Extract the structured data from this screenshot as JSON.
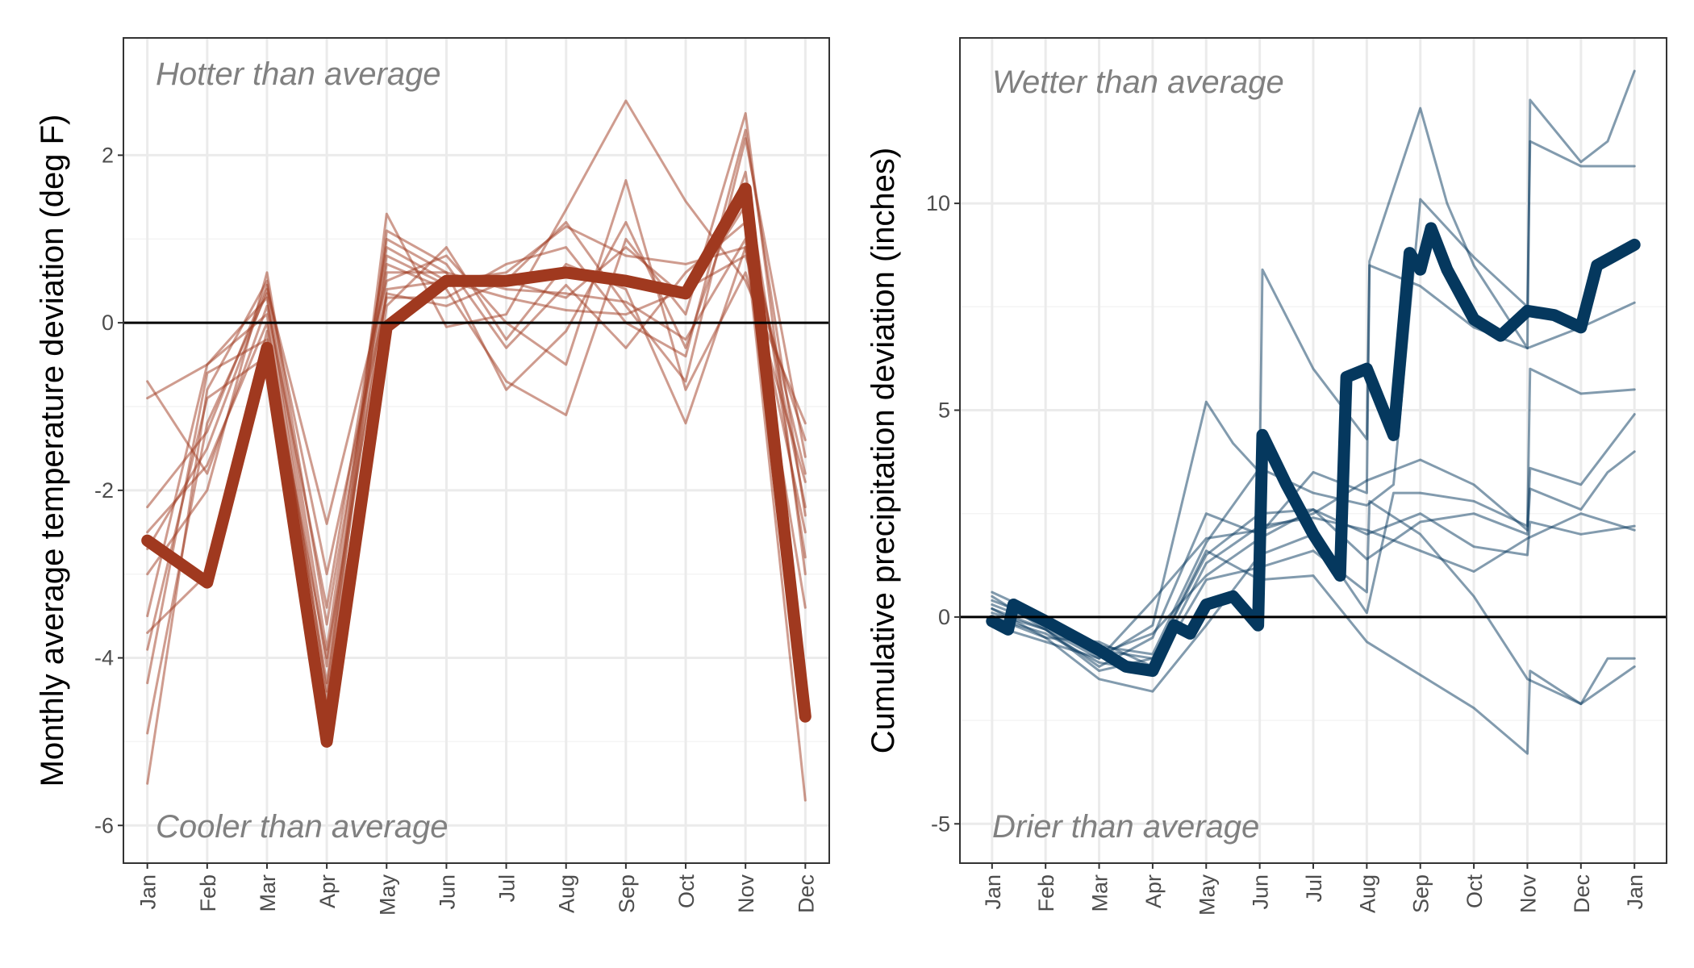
{
  "chart_data": [
    {
      "type": "line",
      "ylabel": "Monthly average temperature deviation (deg F)",
      "xlabel": "",
      "categories": [
        "Jan",
        "Feb",
        "Mar",
        "Apr",
        "May",
        "Jun",
        "Jul",
        "Aug",
        "Sep",
        "Oct",
        "Nov",
        "Dec"
      ],
      "ylim": [
        -6.45,
        3.4
      ],
      "yticks": [
        -6,
        -4,
        -2,
        0,
        2
      ],
      "yticklabels": [
        "-6",
        "-4",
        "-2",
        "0",
        "2"
      ],
      "reference_line": 0,
      "annotations": {
        "top": "Hotter than average",
        "bottom": "Cooler than average"
      },
      "color": "#a0391f",
      "series": [
        {
          "values": [
            -2.6,
            -3.1,
            -0.3,
            -5.0,
            -0.05,
            0.5,
            0.5,
            0.6,
            0.5,
            0.35,
            1.6,
            -4.7
          ],
          "highlight": true
        },
        {
          "values": [
            -0.7,
            -1.8,
            0.2,
            -3.4,
            0.9,
            0.5,
            0.6,
            1.15,
            0.8,
            0.7,
            0.9,
            -3.4
          ]
        },
        {
          "values": [
            -2.5,
            -1.7,
            0.0,
            -4.3,
            0.6,
            0.6,
            0.4,
            0.35,
            0.25,
            -0.2,
            1.0,
            -5.7
          ]
        },
        {
          "values": [
            -3.7,
            -3.0,
            -0.1,
            -4.8,
            0.4,
            0.5,
            0.3,
            0.15,
            0.1,
            0.4,
            0.8,
            -1.4
          ]
        },
        {
          "values": [
            -4.9,
            -1.2,
            0.35,
            -4.1,
            0.8,
            0.45,
            0.5,
            0.3,
            0.9,
            0.3,
            1.4,
            -2.2
          ]
        },
        {
          "values": [
            -5.5,
            -0.8,
            0.5,
            -3.9,
            1.0,
            0.6,
            -0.8,
            -0.1,
            1.2,
            -0.3,
            1.8,
            -2.8
          ]
        },
        {
          "values": [
            -3.5,
            -0.5,
            0.3,
            -4.4,
            1.3,
            -0.05,
            0.1,
            1.35,
            2.65,
            1.45,
            0.5,
            -1.2
          ]
        },
        {
          "values": [
            -4.3,
            -0.6,
            -0.2,
            -4.0,
            0.35,
            0.2,
            0.5,
            1.2,
            0.2,
            -0.7,
            2.2,
            -1.6
          ]
        },
        {
          "values": [
            -2.7,
            -1.5,
            0.4,
            -2.4,
            0.5,
            0.8,
            0.0,
            -0.5,
            1.7,
            -0.8,
            0.6,
            -1.9
          ]
        },
        {
          "values": [
            -0.9,
            -0.5,
            0.1,
            -4.5,
            0.2,
            0.9,
            -0.2,
            0.7,
            0.4,
            -1.2,
            0.9,
            -2.5
          ]
        },
        {
          "values": [
            -3.0,
            -2.0,
            0.6,
            -3.6,
            0.7,
            0.4,
            -0.7,
            -1.1,
            1.0,
            0.1,
            2.5,
            -3.0
          ]
        },
        {
          "values": [
            -3.9,
            -0.9,
            -0.4,
            -4.6,
            1.1,
            0.7,
            -0.3,
            0.45,
            -0.3,
            0.6,
            1.2,
            -1.8
          ]
        },
        {
          "values": [
            -2.2,
            -1.3,
            0.45,
            -3.0,
            0.3,
            0.3,
            0.7,
            0.9,
            0.0,
            -0.4,
            2.3,
            -2.3
          ]
        }
      ]
    },
    {
      "type": "line",
      "ylabel": "Cumulative precipitation deviation (inches)",
      "xlabel": "",
      "x_ticks": [
        "Jan",
        "Feb",
        "Mar",
        "Apr",
        "May",
        "Jun",
        "Jul",
        "Aug",
        "Sep",
        "Oct",
        "Nov",
        "Dec",
        "Jan"
      ],
      "ylim": [
        -5.95,
        14.0
      ],
      "yticks": [
        -5,
        0,
        5,
        10
      ],
      "yticklabels": [
        "-5",
        "0",
        "5",
        "10"
      ],
      "reference_line": 0,
      "annotations": {
        "top": "Wetter than average",
        "bottom": "Drier than average"
      },
      "color": "#05385e",
      "series_x_unit": "month of year (0 = Jan 1, 12 = next Jan 1)",
      "series": [
        {
          "highlight": true,
          "points": [
            [
              0,
              -0.1
            ],
            [
              0.3,
              -0.3
            ],
            [
              0.4,
              0.3
            ],
            [
              1,
              -0.1
            ],
            [
              2,
              -0.8
            ],
            [
              2.5,
              -1.2
            ],
            [
              3,
              -1.3
            ],
            [
              3.4,
              -0.2
            ],
            [
              3.7,
              -0.4
            ],
            [
              4,
              0.3
            ],
            [
              4.5,
              0.5
            ],
            [
              4.97,
              -0.2
            ],
            [
              5.05,
              4.4
            ],
            [
              5.5,
              3.2
            ],
            [
              6,
              2.0
            ],
            [
              6.5,
              1.0
            ],
            [
              6.62,
              5.8
            ],
            [
              7,
              6.0
            ],
            [
              7.5,
              4.4
            ],
            [
              7.8,
              8.8
            ],
            [
              8,
              8.4
            ],
            [
              8.2,
              9.4
            ],
            [
              8.5,
              8.4
            ],
            [
              9,
              7.2
            ],
            [
              9.5,
              6.8
            ],
            [
              10,
              7.4
            ],
            [
              10.5,
              7.3
            ],
            [
              11,
              7.0
            ],
            [
              11.3,
              8.5
            ],
            [
              12,
              9.0
            ]
          ]
        },
        {
          "points": [
            [
              0,
              0.2
            ],
            [
              1,
              -0.3
            ],
            [
              2,
              -1.0
            ],
            [
              3,
              -0.2
            ],
            [
              4,
              5.2
            ],
            [
              4.5,
              4.2
            ],
            [
              5,
              3.5
            ],
            [
              5.05,
              8.4
            ],
            [
              6,
              6.0
            ],
            [
              7,
              4.3
            ],
            [
              7.05,
              8.6
            ],
            [
              8,
              12.3
            ],
            [
              8.5,
              10.0
            ],
            [
              9,
              8.5
            ],
            [
              10,
              6.5
            ],
            [
              10.05,
              12.5
            ],
            [
              11,
              11.0
            ],
            [
              11.5,
              11.5
            ],
            [
              12,
              13.2
            ]
          ]
        },
        {
          "points": [
            [
              0,
              0.3
            ],
            [
              1,
              -0.2
            ],
            [
              2,
              -0.7
            ],
            [
              3,
              -0.9
            ],
            [
              4,
              1.8
            ],
            [
              5,
              3.6
            ],
            [
              6,
              3.0
            ],
            [
              7,
              2.7
            ],
            [
              7.5,
              3.2
            ],
            [
              8,
              10.1
            ],
            [
              9,
              8.7
            ],
            [
              10,
              7.5
            ],
            [
              10.05,
              11.5
            ],
            [
              11,
              10.9
            ],
            [
              12,
              10.9
            ]
          ]
        },
        {
          "points": [
            [
              0,
              0.5
            ],
            [
              1,
              -0.3
            ],
            [
              2,
              -1.2
            ],
            [
              3,
              -0.5
            ],
            [
              4,
              2.5
            ],
            [
              5,
              2.0
            ],
            [
              6,
              3.5
            ],
            [
              7,
              3.0
            ],
            [
              7.05,
              8.5
            ],
            [
              8,
              8.0
            ],
            [
              9,
              7.0
            ],
            [
              10,
              6.5
            ],
            [
              11,
              7.0
            ],
            [
              12,
              7.6
            ]
          ]
        },
        {
          "points": [
            [
              0,
              0.0
            ],
            [
              1,
              -0.5
            ],
            [
              2,
              -1.5
            ],
            [
              3,
              -1.8
            ],
            [
              4,
              -0.2
            ],
            [
              5,
              1.5
            ],
            [
              6,
              2.0
            ],
            [
              7,
              0.1
            ],
            [
              7.5,
              3.0
            ],
            [
              8,
              3.0
            ],
            [
              9,
              2.8
            ],
            [
              10,
              2.2
            ],
            [
              10.05,
              6.0
            ],
            [
              11,
              5.4
            ],
            [
              12,
              5.5
            ]
          ]
        },
        {
          "points": [
            [
              0,
              -0.2
            ],
            [
              1,
              -0.6
            ],
            [
              2,
              -1.0
            ],
            [
              3,
              0.4
            ],
            [
              4,
              1.9
            ],
            [
              5,
              2.1
            ],
            [
              6,
              2.5
            ],
            [
              7,
              3.3
            ],
            [
              8,
              3.8
            ],
            [
              9,
              3.2
            ],
            [
              10,
              2.1
            ],
            [
              10.05,
              3.6
            ],
            [
              11,
              3.2
            ],
            [
              12,
              4.9
            ]
          ]
        },
        {
          "points": [
            [
              0,
              0.1
            ],
            [
              1,
              -0.3
            ],
            [
              2,
              -1.3
            ],
            [
              3,
              -1.0
            ],
            [
              4,
              1.5
            ],
            [
              5,
              2.5
            ],
            [
              6,
              2.6
            ],
            [
              7,
              1.4
            ],
            [
              8,
              2.3
            ],
            [
              9,
              2.5
            ],
            [
              10,
              2.0
            ],
            [
              10.05,
              3.1
            ],
            [
              11,
              2.6
            ],
            [
              11.5,
              3.5
            ],
            [
              12,
              4.0
            ]
          ]
        },
        {
          "points": [
            [
              0,
              0.4
            ],
            [
              1,
              -0.1
            ],
            [
              2,
              -0.9
            ],
            [
              3,
              -0.4
            ],
            [
              4,
              1.0
            ],
            [
              5,
              1.9
            ],
            [
              6,
              2.6
            ],
            [
              7,
              2.0
            ],
            [
              8,
              2.5
            ],
            [
              9,
              1.7
            ],
            [
              10,
              1.5
            ],
            [
              10.05,
              2.3
            ],
            [
              11,
              2.0
            ],
            [
              12,
              2.2
            ]
          ]
        },
        {
          "points": [
            [
              0,
              0.6
            ],
            [
              1,
              0.0
            ],
            [
              2,
              -0.8
            ],
            [
              3,
              -1.0
            ],
            [
              4,
              1.6
            ],
            [
              5,
              0.9
            ],
            [
              6,
              1.0
            ],
            [
              7,
              -0.6
            ],
            [
              8,
              -1.4
            ],
            [
              9,
              -2.2
            ],
            [
              10,
              -3.3
            ],
            [
              10.05,
              -1.3
            ],
            [
              11,
              -2.1
            ],
            [
              11.5,
              -1.0
            ],
            [
              12,
              -1.0
            ]
          ]
        },
        {
          "points": [
            [
              0,
              0.0
            ],
            [
              1,
              -0.4
            ],
            [
              2,
              -1.1
            ],
            [
              3,
              -1.3
            ],
            [
              4,
              0.9
            ],
            [
              5,
              1.2
            ],
            [
              6,
              1.6
            ],
            [
              7,
              0.6
            ],
            [
              7.05,
              2.8
            ],
            [
              8,
              2.0
            ],
            [
              9,
              0.5
            ],
            [
              10,
              -1.5
            ],
            [
              11,
              -2.1
            ],
            [
              12,
              -1.2
            ]
          ]
        },
        {
          "points": [
            [
              0,
              0.2
            ],
            [
              1,
              -0.5
            ],
            [
              2,
              -0.6
            ],
            [
              3,
              -1.2
            ],
            [
              4,
              1.3
            ],
            [
              5,
              2.2
            ],
            [
              6,
              2.4
            ],
            [
              7,
              2.1
            ],
            [
              8,
              1.6
            ],
            [
              9,
              1.1
            ],
            [
              10,
              1.9
            ],
            [
              11,
              2.5
            ],
            [
              12,
              2.1
            ]
          ]
        }
      ]
    }
  ]
}
